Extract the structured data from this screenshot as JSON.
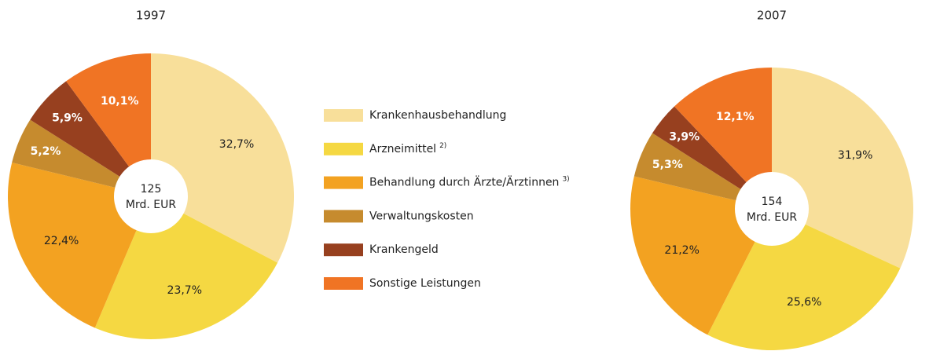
{
  "chart_data": [
    {
      "type": "pie",
      "title": "1997",
      "categories": [
        "Krankenhausbehandlung",
        "Arzneimittel",
        "Behandlung durch Ärzte/Ärztinnen",
        "Verwaltungskosten",
        "Krankengeld",
        "Sonstige Leistungen"
      ],
      "category_notes": [
        null,
        "2)",
        "3)",
        null,
        null,
        null
      ],
      "values": [
        32.7,
        23.7,
        22.4,
        5.2,
        5.9,
        10.1
      ],
      "value_labels": [
        "32,7%",
        "23,7%",
        "22,4%",
        "5,2%",
        "5,9%",
        "10,1%"
      ],
      "colors": [
        "#f8df9a",
        "#f5d842",
        "#f3a221",
        "#c68b2e",
        "#97401f",
        "#f07424"
      ],
      "center_label": [
        "125",
        "Mrd. EUR"
      ]
    },
    {
      "type": "pie",
      "title": "2007",
      "values": [
        31.9,
        25.6,
        21.2,
        5.3,
        3.9,
        12.1
      ],
      "value_labels": [
        "31,9%",
        "25,6%",
        "21,2%",
        "5,3%",
        "3,9%",
        "12,1%"
      ],
      "colors": [
        "#f8df9a",
        "#f5d842",
        "#f3a221",
        "#c68b2e",
        "#97401f",
        "#f07424"
      ],
      "center_label": [
        "154",
        "Mrd. EUR"
      ]
    }
  ]
}
